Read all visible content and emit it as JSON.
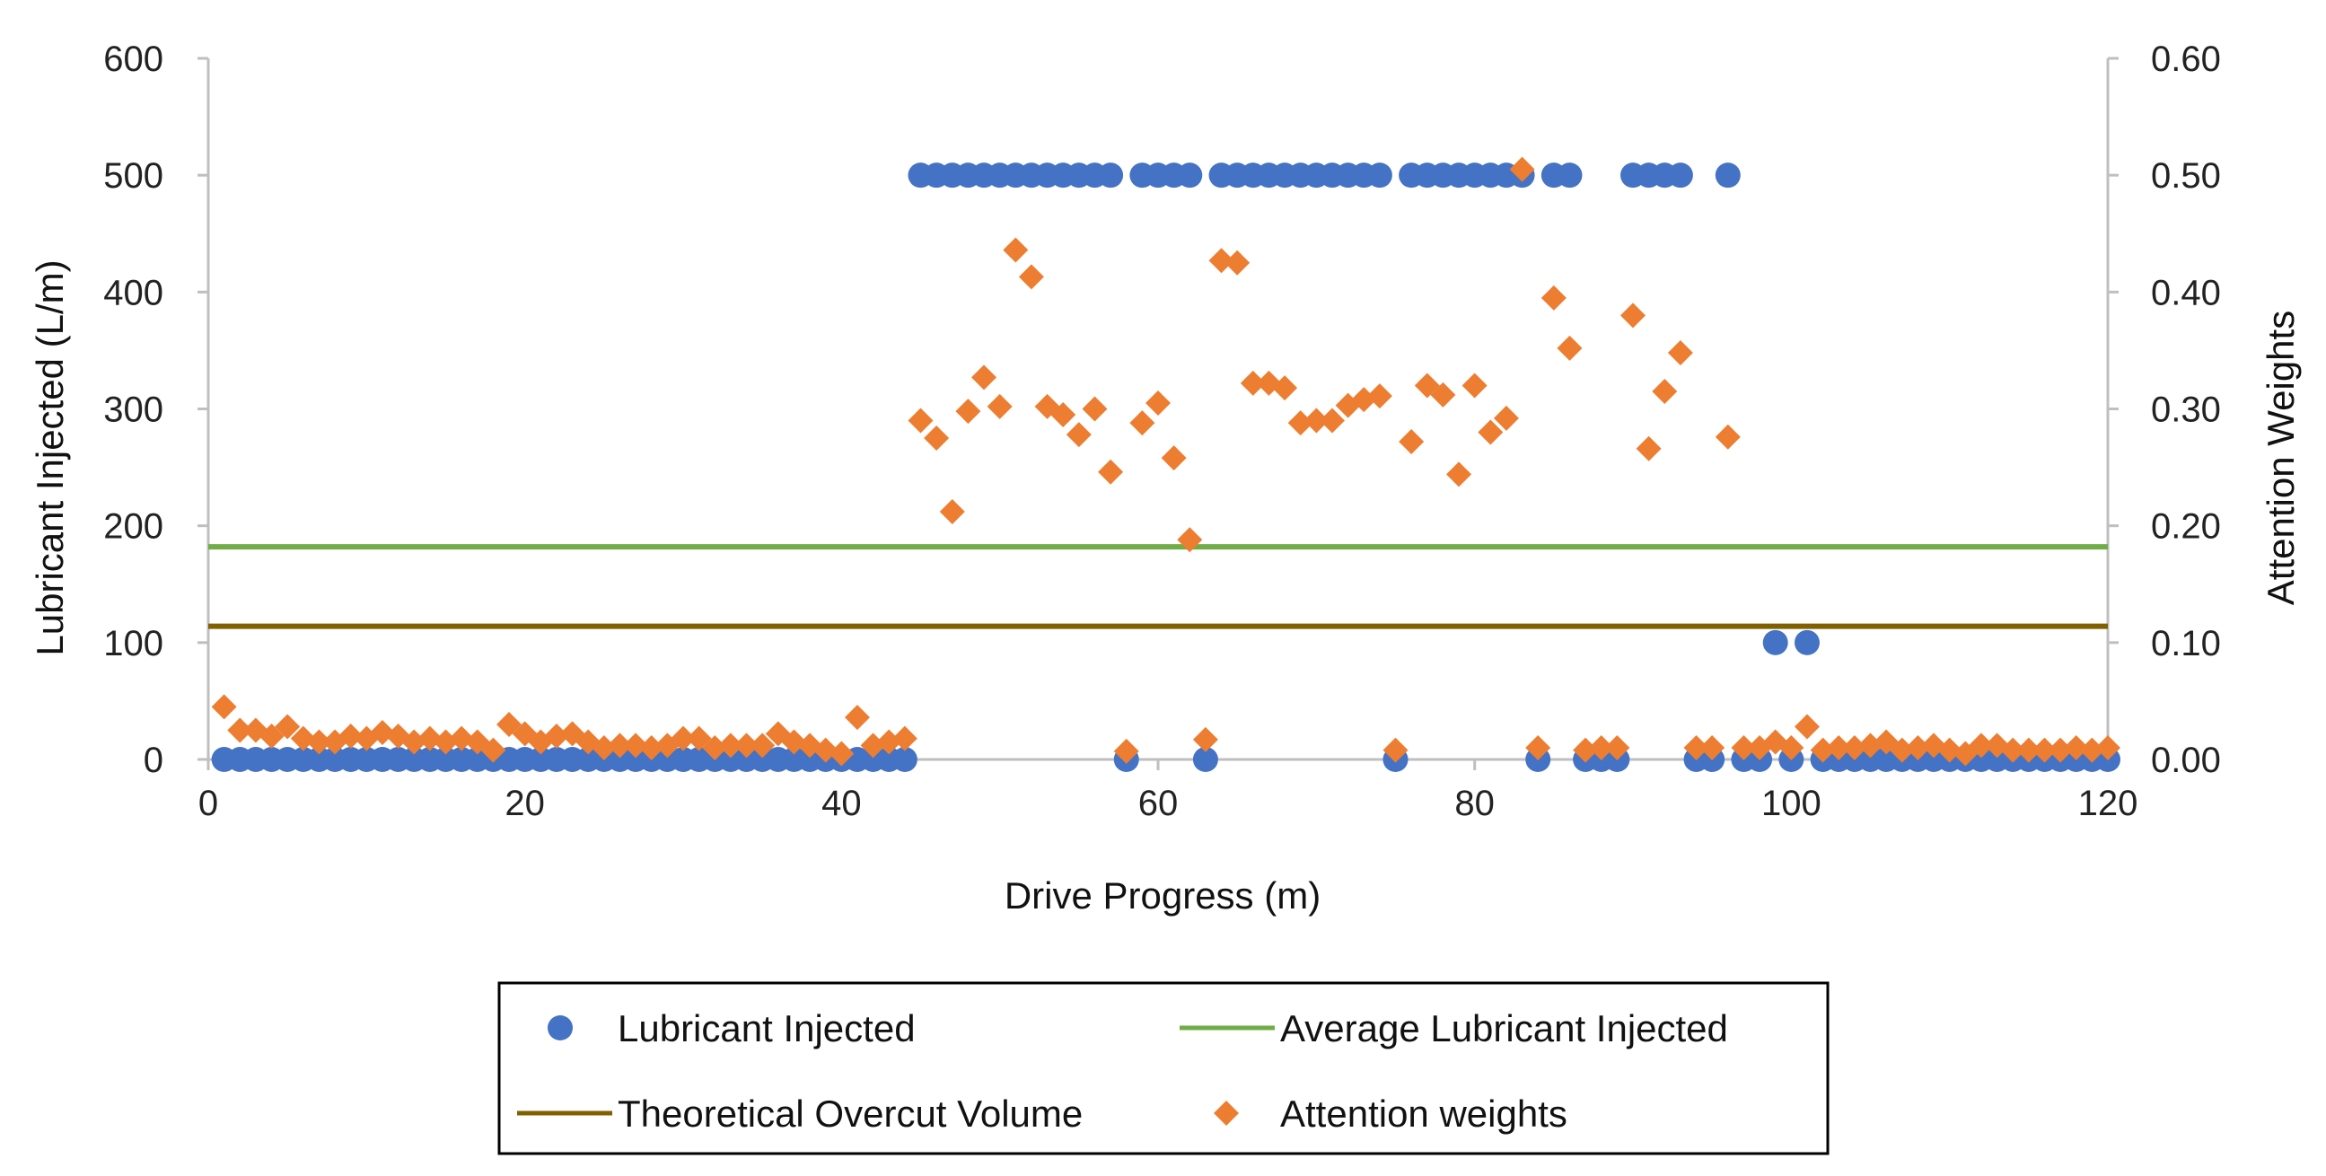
{
  "chart_data": {
    "type": "scatter",
    "title": "",
    "xlabel": "Drive Progress (m)",
    "ylabel": "Lubricant Injected (L/m)",
    "y2label": "Attention Weights",
    "xlim": [
      0,
      120
    ],
    "ylim": [
      0,
      600
    ],
    "y2lim": [
      0,
      0.6
    ],
    "x_ticks": [
      "0",
      "20",
      "40",
      "60",
      "80",
      "100",
      "120"
    ],
    "y_ticks": [
      "0",
      "100",
      "200",
      "300",
      "400",
      "500",
      "600"
    ],
    "y2_ticks": [
      "0.00",
      "0.10",
      "0.20",
      "0.30",
      "0.40",
      "0.50",
      "0.60"
    ],
    "grid": false,
    "legend_position": "bottom",
    "colors": {
      "lubricant": "#4472C4",
      "average": "#70AD47",
      "overcut": "#806000",
      "attention": "#ED7D31"
    },
    "series": [
      {
        "name": "Lubricant Injected",
        "kind": "scatter",
        "marker": "circle",
        "axis": "left",
        "x": [
          1,
          2,
          3,
          4,
          5,
          6,
          7,
          8,
          9,
          10,
          11,
          12,
          13,
          14,
          15,
          16,
          17,
          18,
          19,
          20,
          21,
          22,
          23,
          24,
          25,
          26,
          27,
          28,
          29,
          30,
          31,
          32,
          33,
          34,
          35,
          36,
          37,
          38,
          39,
          40,
          41,
          42,
          43,
          44,
          45,
          46,
          47,
          48,
          49,
          50,
          51,
          52,
          53,
          54,
          55,
          56,
          57,
          58,
          59,
          60,
          61,
          62,
          63,
          64,
          65,
          66,
          67,
          68,
          69,
          70,
          71,
          72,
          73,
          74,
          75,
          76,
          77,
          78,
          79,
          80,
          81,
          82,
          83,
          84,
          85,
          86,
          87,
          88,
          89,
          90,
          91,
          92,
          93,
          94,
          95,
          96,
          97,
          98,
          99,
          100,
          101,
          102,
          103,
          104,
          105,
          106,
          107,
          108,
          109,
          110,
          111,
          112,
          113,
          114,
          115,
          116,
          117,
          118,
          119,
          120
        ],
        "values": [
          0,
          0,
          0,
          0,
          0,
          0,
          0,
          0,
          0,
          0,
          0,
          0,
          0,
          0,
          0,
          0,
          0,
          0,
          0,
          0,
          0,
          0,
          0,
          0,
          0,
          0,
          0,
          0,
          0,
          0,
          0,
          0,
          0,
          0,
          0,
          0,
          0,
          0,
          0,
          0,
          0,
          0,
          0,
          0,
          500,
          500,
          500,
          500,
          500,
          500,
          500,
          500,
          500,
          500,
          500,
          500,
          500,
          0,
          500,
          500,
          500,
          500,
          0,
          500,
          500,
          500,
          500,
          500,
          500,
          500,
          500,
          500,
          500,
          500,
          0,
          500,
          500,
          500,
          500,
          500,
          500,
          500,
          500,
          0,
          500,
          500,
          0,
          0,
          0,
          500,
          500,
          500,
          500,
          0,
          0,
          500,
          0,
          0,
          100,
          0,
          100,
          0,
          0,
          0,
          0,
          0,
          0,
          0,
          0,
          0,
          0,
          0,
          0,
          0,
          0,
          0,
          0,
          0,
          0,
          0
        ]
      },
      {
        "name": "Average Lubricant Injected",
        "kind": "hline",
        "axis": "left",
        "value": 182
      },
      {
        "name": "Theoretical Overcut Volume",
        "kind": "hline",
        "axis": "left",
        "value": 114
      },
      {
        "name": "Attention weights",
        "kind": "scatter",
        "marker": "diamond",
        "axis": "right",
        "x": [
          1,
          2,
          3,
          4,
          5,
          6,
          7,
          8,
          9,
          10,
          11,
          12,
          13,
          14,
          15,
          16,
          17,
          18,
          19,
          20,
          21,
          22,
          23,
          24,
          25,
          26,
          27,
          28,
          29,
          30,
          31,
          32,
          33,
          34,
          35,
          36,
          37,
          38,
          39,
          40,
          41,
          42,
          43,
          44,
          45,
          46,
          47,
          48,
          49,
          50,
          51,
          52,
          53,
          54,
          55,
          56,
          57,
          58,
          59,
          60,
          61,
          62,
          63,
          64,
          65,
          66,
          67,
          68,
          69,
          70,
          71,
          72,
          73,
          74,
          75,
          76,
          77,
          78,
          79,
          80,
          81,
          82,
          83,
          84,
          85,
          86,
          87,
          88,
          89,
          90,
          91,
          92,
          93,
          94,
          95,
          96,
          97,
          98,
          99,
          100,
          101,
          102,
          103,
          104,
          105,
          106,
          107,
          108,
          109,
          110,
          111,
          112,
          113,
          114,
          115,
          116,
          117,
          118,
          119,
          120
        ],
        "values": [
          0.045,
          0.025,
          0.025,
          0.02,
          0.028,
          0.018,
          0.015,
          0.015,
          0.02,
          0.018,
          0.023,
          0.02,
          0.015,
          0.018,
          0.015,
          0.018,
          0.015,
          0.008,
          0.03,
          0.022,
          0.015,
          0.02,
          0.022,
          0.015,
          0.01,
          0.012,
          0.012,
          0.01,
          0.012,
          0.018,
          0.018,
          0.01,
          0.012,
          0.012,
          0.012,
          0.022,
          0.015,
          0.012,
          0.008,
          0.005,
          0.036,
          0.012,
          0.015,
          0.018,
          0.29,
          0.275,
          0.212,
          0.298,
          0.327,
          0.302,
          0.436,
          0.413,
          0.302,
          0.295,
          0.278,
          0.3,
          0.246,
          0.007,
          0.288,
          0.305,
          0.258,
          0.188,
          0.017,
          0.427,
          0.425,
          0.322,
          0.322,
          0.318,
          0.288,
          0.29,
          0.29,
          0.303,
          0.308,
          0.311,
          0.008,
          0.272,
          0.32,
          0.312,
          0.244,
          0.32,
          0.28,
          0.292,
          0.505,
          0.01,
          0.395,
          0.352,
          0.008,
          0.01,
          0.01,
          0.38,
          0.266,
          0.315,
          0.348,
          0.01,
          0.01,
          0.276,
          0.01,
          0.01,
          0.015,
          0.01,
          0.028,
          0.008,
          0.01,
          0.01,
          0.012,
          0.015,
          0.008,
          0.01,
          0.012,
          0.008,
          0.005,
          0.012,
          0.012,
          0.008,
          0.008,
          0.008,
          0.008,
          0.01,
          0.008,
          0.01
        ]
      }
    ]
  }
}
